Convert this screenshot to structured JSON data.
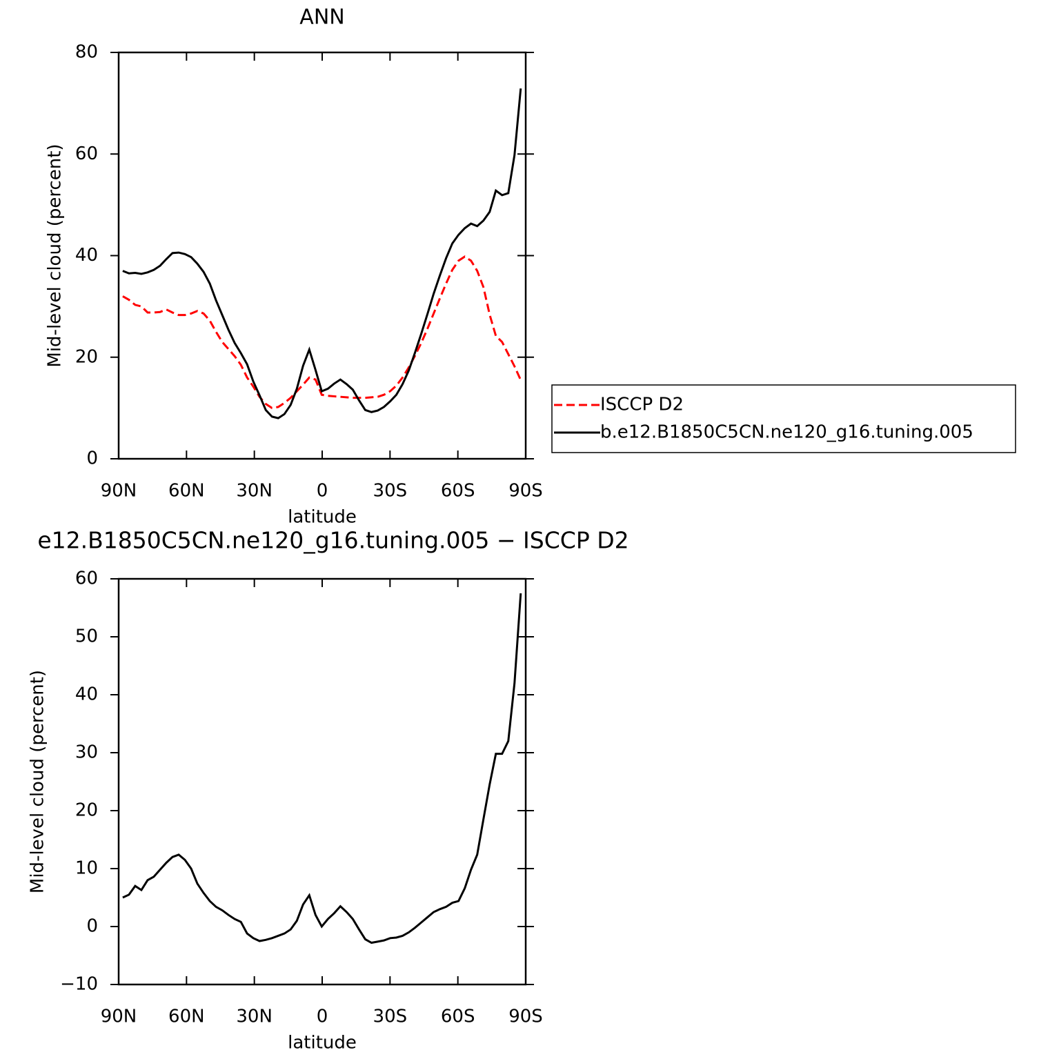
{
  "chart_data": [
    {
      "type": "line",
      "title": "ANN",
      "xlabel": "latitude",
      "ylabel": "Mid-level cloud (percent)",
      "xlim": [
        90,
        -90
      ],
      "xticks": [
        {
          "value": 90,
          "label": "90N"
        },
        {
          "value": 60,
          "label": "60N"
        },
        {
          "value": 30,
          "label": "30N"
        },
        0,
        {
          "value": -30,
          "label": "30S"
        },
        {
          "value": -60,
          "label": "60S"
        },
        {
          "value": -90,
          "label": "90S"
        }
      ],
      "ylim": [
        0,
        80
      ],
      "yticks": [
        0,
        20,
        40,
        60,
        80
      ],
      "legend": "right",
      "x": [
        88.2,
        85.45,
        82.7,
        79.95,
        77.2,
        74.45,
        71.7,
        68.95,
        66.2,
        63.45,
        60.7,
        57.95,
        55.2,
        52.45,
        49.7,
        46.95,
        44.2,
        41.45,
        38.7,
        35.95,
        33.2,
        30.45,
        27.7,
        24.95,
        22.2,
        19.45,
        16.7,
        13.95,
        11.2,
        8.45,
        5.7,
        2.95,
        0.2,
        -2.55,
        -5.3,
        -8.05,
        -10.8,
        -13.55,
        -16.3,
        -19.05,
        -21.8,
        -24.55,
        -27.3,
        -30.05,
        -32.8,
        -35.55,
        -38.3,
        -41.05,
        -43.8,
        -46.55,
        -49.3,
        -52.05,
        -54.8,
        -57.55,
        -60.3,
        -63.05,
        -65.8,
        -68.55,
        -71.3,
        -74.05,
        -76.8,
        -79.55,
        -82.3,
        -85.05,
        -87.8
      ],
      "series": [
        {
          "name": "ISCCP D2",
          "color": "#ff0000",
          "linestyle": "dashed",
          "values": [
            32.0,
            31.3,
            30.3,
            30.0,
            28.8,
            28.8,
            28.9,
            29.4,
            28.8,
            28.3,
            28.3,
            28.6,
            29.1,
            28.6,
            27.2,
            25.0,
            23.0,
            21.6,
            20.2,
            18.5,
            16.0,
            14.2,
            12.2,
            10.8,
            10.0,
            10.2,
            11.0,
            12.0,
            13.3,
            14.6,
            16.0,
            15.6,
            12.6,
            12.4,
            12.3,
            12.2,
            12.1,
            12.0,
            12.0,
            12.0,
            12.1,
            12.2,
            12.6,
            13.3,
            14.4,
            16.0,
            18.0,
            20.3,
            22.8,
            25.6,
            28.6,
            31.6,
            34.5,
            37.2,
            39.0,
            39.8,
            39.0,
            37.0,
            33.8,
            28.4,
            24.2,
            23.0,
            20.6,
            18.2,
            15.5
          ]
        },
        {
          "name": "b.e12.B1850C5CN.ne120_g16.tuning.005",
          "color": "#000000",
          "linestyle": "solid",
          "values": [
            37.0,
            36.5,
            36.6,
            36.4,
            36.7,
            37.2,
            38.0,
            39.3,
            40.5,
            40.6,
            40.3,
            39.7,
            38.4,
            36.8,
            34.5,
            31.2,
            28.3,
            25.4,
            22.8,
            20.8,
            18.6,
            15.2,
            12.5,
            9.6,
            8.3,
            8.0,
            8.8,
            10.6,
            13.8,
            18.3,
            21.5,
            17.5,
            13.3,
            13.8,
            14.8,
            15.6,
            14.7,
            13.6,
            11.5,
            9.6,
            9.2,
            9.5,
            10.2,
            11.3,
            12.6,
            14.7,
            17.4,
            20.9,
            24.6,
            28.5,
            32.5,
            36.1,
            39.5,
            42.4,
            44.1,
            45.4,
            46.3,
            45.8,
            46.9,
            48.6,
            52.8,
            51.9,
            52.3,
            59.8,
            72.9
          ]
        }
      ]
    },
    {
      "type": "line",
      "title": "e12.B1850C5CN.ne120_g16.tuning.005 − ISCCP D2",
      "xlabel": "latitude",
      "ylabel": "Mid-level cloud (percent)",
      "xlim": [
        90,
        -90
      ],
      "xticks": [
        {
          "value": 90,
          "label": "90N"
        },
        {
          "value": 60,
          "label": "60N"
        },
        {
          "value": 30,
          "label": "30N"
        },
        0,
        {
          "value": -30,
          "label": "30S"
        },
        {
          "value": -60,
          "label": "60S"
        },
        {
          "value": -90,
          "label": "90S"
        }
      ],
      "ylim": [
        -10,
        60
      ],
      "yticks": [
        {
          "value": -10,
          "label": "−10"
        },
        0,
        10,
        20,
        30,
        40,
        50,
        60
      ],
      "x": [
        88.2,
        85.45,
        82.7,
        79.95,
        77.2,
        74.45,
        71.7,
        68.95,
        66.2,
        63.45,
        60.7,
        57.95,
        55.2,
        52.45,
        49.7,
        46.95,
        44.2,
        41.45,
        38.7,
        35.95,
        33.2,
        30.45,
        27.7,
        24.95,
        22.2,
        19.45,
        16.7,
        13.95,
        11.2,
        8.45,
        5.7,
        2.95,
        0.2,
        -2.55,
        -5.3,
        -8.05,
        -10.8,
        -13.55,
        -16.3,
        -19.05,
        -21.8,
        -24.55,
        -27.3,
        -30.05,
        -32.8,
        -35.55,
        -38.3,
        -41.05,
        -43.8,
        -46.55,
        -49.3,
        -52.05,
        -54.8,
        -57.55,
        -60.3,
        -63.05,
        -65.8,
        -68.55,
        -71.3,
        -74.05,
        -76.8,
        -79.55,
        -82.3,
        -85.05,
        -87.8
      ],
      "color": "#000000",
      "values": [
        5.0,
        5.5,
        7.0,
        6.3,
        8.0,
        8.6,
        9.8,
        11.0,
        12.0,
        12.4,
        11.5,
        10.0,
        7.4,
        5.8,
        4.4,
        3.4,
        2.8,
        2.0,
        1.3,
        0.8,
        -1.2,
        -2.0,
        -2.5,
        -2.3,
        -2.0,
        -1.6,
        -1.2,
        -0.5,
        1.0,
        3.8,
        5.4,
        2.0,
        0.0,
        1.3,
        2.3,
        3.5,
        2.5,
        1.3,
        -0.5,
        -2.2,
        -2.8,
        -2.6,
        -2.4,
        -2.0,
        -1.9,
        -1.6,
        -1.0,
        -0.2,
        0.7,
        1.6,
        2.5,
        3.0,
        3.4,
        4.1,
        4.4,
        6.6,
        9.8,
        12.4,
        18.5,
        24.5,
        29.8,
        29.8,
        32.0,
        42.0,
        57.5
      ]
    }
  ]
}
